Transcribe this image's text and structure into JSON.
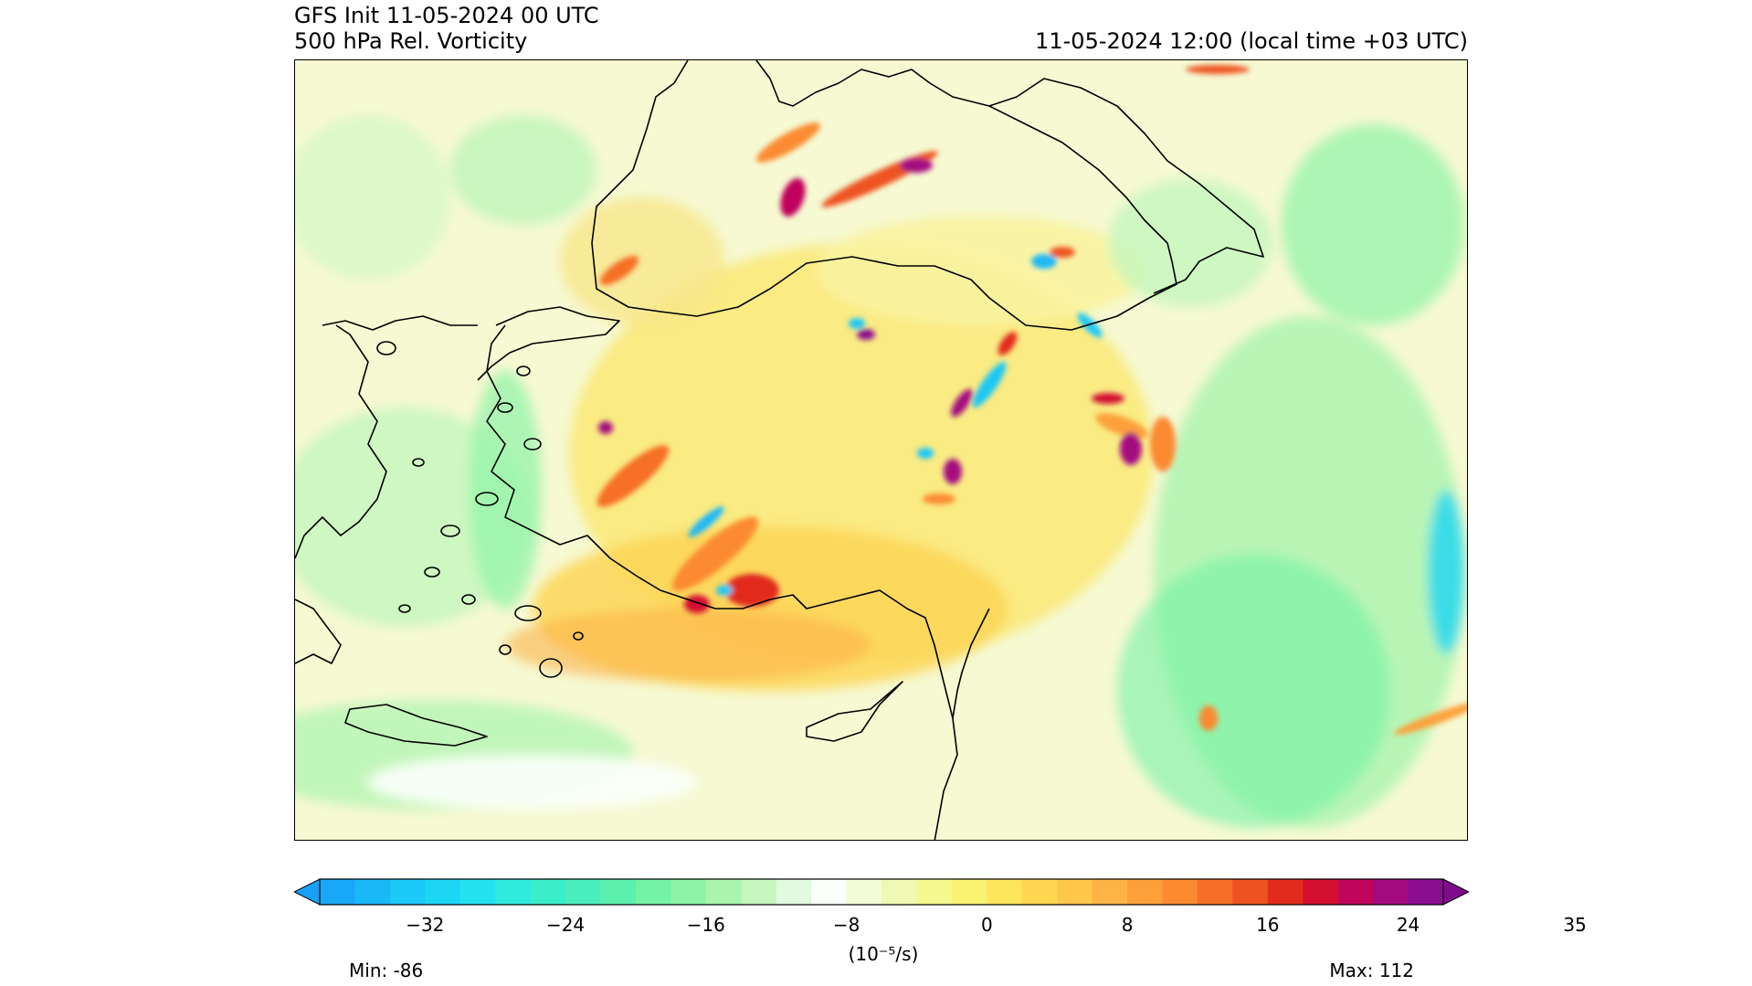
{
  "header": {
    "init": "GFS Init 11-05-2024 00 UTC",
    "field": "500 hPa Rel. Vorticity",
    "valid_time": "11-05-2024 12:00 (local time +03 UTC)"
  },
  "colorbar": {
    "ticks": [
      "−32",
      "−24",
      "−16",
      "−8",
      "0",
      "8",
      "16",
      "24",
      "35"
    ],
    "unit": "(10⁻⁵/s)",
    "colors": [
      "#19a7f7",
      "#1ab8f7",
      "#1bc8f7",
      "#1dd6f3",
      "#24e2ee",
      "#30eade",
      "#3cedcc",
      "#4aefbd",
      "#5cf0ae",
      "#74f2a5",
      "#8ef3a6",
      "#a9f4ae",
      "#c4f6bd",
      "#e2fae0",
      "#fbfffb",
      "#f4fcd6",
      "#eff9b4",
      "#f5f78f",
      "#faf271",
      "#fde65c",
      "#fed64f",
      "#fec64a",
      "#feb444",
      "#fda03a",
      "#fb8a30",
      "#f66f28",
      "#ee5220",
      "#e12c1c",
      "#d30f30",
      "#c0065c",
      "#a40a80",
      "#8a0e90"
    ],
    "extend_left_color": "#17a0f5",
    "extend_right_color": "#7e0c8a",
    "min_label": "Min: -86",
    "max_label": "Max: 112"
  },
  "map": {
    "background_color": "#f6f9d2",
    "coastline_color": "#000000"
  }
}
